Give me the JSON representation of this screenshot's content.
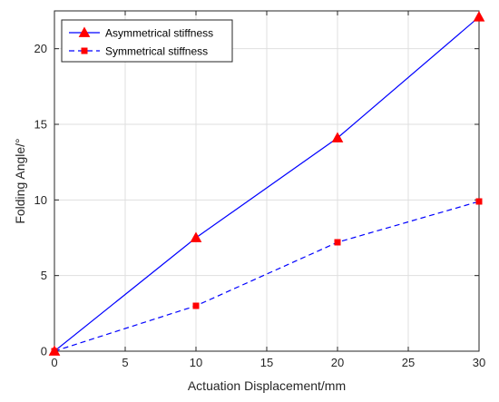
{
  "chart_data": {
    "type": "line",
    "xlabel": "Actuation Displacement/mm",
    "ylabel": "Folding Angle/°",
    "xlim": [
      0,
      30
    ],
    "ylim": [
      0,
      22.5
    ],
    "xticks": [
      0,
      5,
      10,
      15,
      20,
      25,
      30
    ],
    "yticks": [
      0,
      5,
      10,
      15,
      20
    ],
    "grid": true,
    "legend_position": "top-left",
    "series": [
      {
        "name": "Asymmetrical stiffness",
        "x": [
          0,
          10,
          20,
          30
        ],
        "y": [
          0,
          7.5,
          14.1,
          22.1
        ],
        "color": "#0000ff",
        "line_style": "solid",
        "marker": "triangle",
        "marker_color": "#ff0000"
      },
      {
        "name": "Symmetrical stiffness",
        "x": [
          0,
          10,
          20,
          30
        ],
        "y": [
          0,
          3.0,
          7.2,
          9.9
        ],
        "color": "#0000ff",
        "line_style": "dashed",
        "marker": "square",
        "marker_color": "#ff0000"
      }
    ]
  }
}
